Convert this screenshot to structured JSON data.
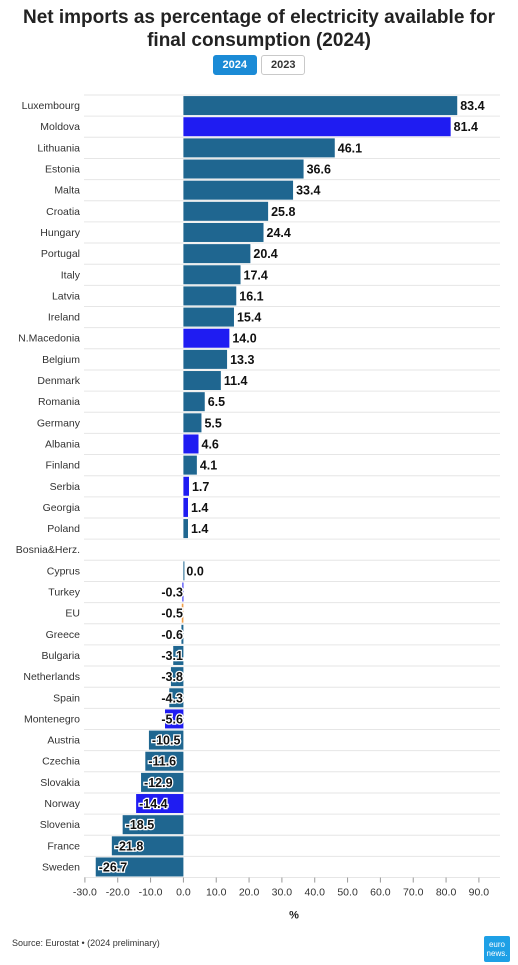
{
  "header": {
    "title_line1": "Net imports as percentage of electricity available for",
    "title_line2": "final consumption (2024)"
  },
  "tabs": [
    {
      "label": "2024",
      "active": true
    },
    {
      "label": "2023",
      "active": false
    }
  ],
  "footer": {
    "source": "Source: Eurostat • (2024 preliminary)",
    "logo_line1": "euro",
    "logo_line2": "news."
  },
  "colors": {
    "eu_member": "#1f6690",
    "non_eu": "#1f1cf2",
    "eu_aggregate": "#f0a04b",
    "grid": "#e6e6e6"
  },
  "chart_data": {
    "type": "bar",
    "orientation": "horizontal",
    "xlabel": "%",
    "xlim": [
      -30,
      90
    ],
    "xticks": [
      "-30.0",
      "-20.0",
      "-10.0",
      "0.0",
      "10.0",
      "20.0",
      "30.0",
      "40.0",
      "50.0",
      "60.0",
      "70.0",
      "80.0",
      "90.0"
    ],
    "grid": true,
    "categories": [
      "Luxembourg",
      "Moldova",
      "Lithuania",
      "Estonia",
      "Malta",
      "Croatia",
      "Hungary",
      "Portugal",
      "Italy",
      "Latvia",
      "Ireland",
      "N.Macedonia",
      "Belgium",
      "Denmark",
      "Romania",
      "Germany",
      "Albania",
      "Finland",
      "Serbia",
      "Georgia",
      "Poland",
      "Bosnia&Herz.",
      "Cyprus",
      "Turkey",
      "EU",
      "Greece",
      "Bulgaria",
      "Netherlands",
      "Spain",
      "Montenegro",
      "Austria",
      "Czechia",
      "Slovakia",
      "Norway",
      "Slovenia",
      "France",
      "Sweden"
    ],
    "values": [
      83.4,
      81.4,
      46.1,
      36.6,
      33.4,
      25.8,
      24.4,
      20.4,
      17.4,
      16.1,
      15.4,
      14.0,
      13.3,
      11.4,
      6.5,
      5.5,
      4.6,
      4.1,
      1.7,
      1.4,
      1.4,
      null,
      0.0,
      -0.3,
      -0.5,
      -0.6,
      -3.1,
      -3.8,
      -4.3,
      -5.6,
      -10.5,
      -11.6,
      -12.9,
      -14.4,
      -18.5,
      -21.8,
      -26.7
    ],
    "labels": [
      "83.4",
      "81.4",
      "46.1",
      "36.6",
      "33.4",
      "25.8",
      "24.4",
      "20.4",
      "17.4",
      "16.1",
      "15.4",
      "14.0",
      "13.3",
      "11.4",
      "6.5",
      "5.5",
      "4.6",
      "4.1",
      "1.7",
      "1.4",
      "1.4",
      "",
      "0.0",
      "-0.3",
      "-0.5",
      "-0.6",
      "-3.1",
      "-3.8",
      "-4.3",
      "-5.6",
      "-10.5",
      "-11.6",
      "-12.9",
      "-14.4",
      "-18.5",
      "-21.8",
      "-26.7"
    ],
    "groups": [
      "eu_member",
      "non_eu",
      "eu_member",
      "eu_member",
      "eu_member",
      "eu_member",
      "eu_member",
      "eu_member",
      "eu_member",
      "eu_member",
      "eu_member",
      "non_eu",
      "eu_member",
      "eu_member",
      "eu_member",
      "eu_member",
      "non_eu",
      "eu_member",
      "non_eu",
      "non_eu",
      "eu_member",
      "non_eu",
      "eu_member",
      "non_eu",
      "eu_aggregate",
      "eu_member",
      "eu_member",
      "eu_member",
      "eu_member",
      "non_eu",
      "eu_member",
      "eu_member",
      "eu_member",
      "non_eu",
      "eu_member",
      "eu_member",
      "eu_member"
    ]
  }
}
